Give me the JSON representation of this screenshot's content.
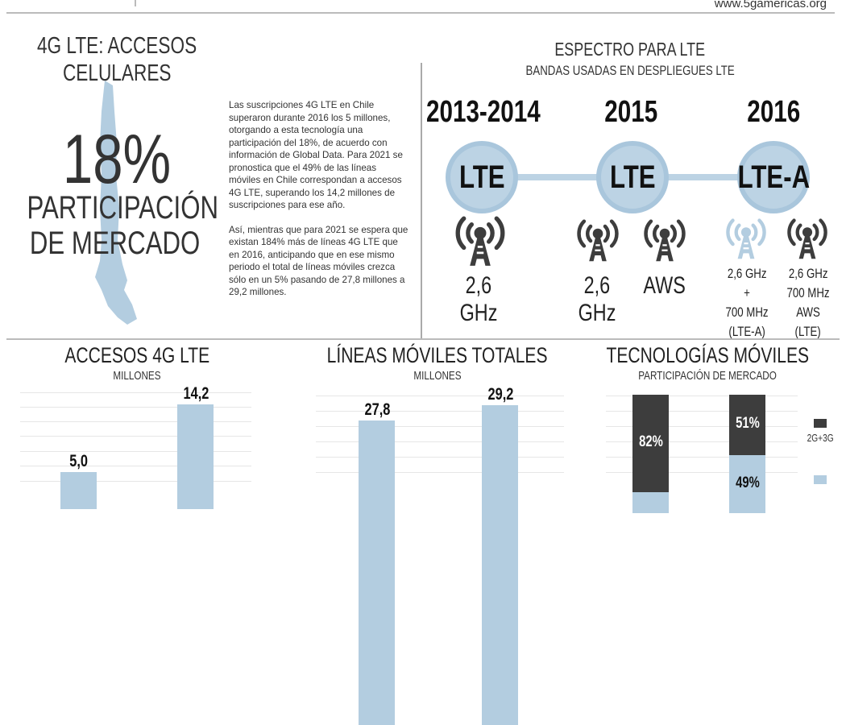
{
  "header": {
    "url": "www.5gamericas.org"
  },
  "left": {
    "title_line1": "4G LTE: ACCESOS",
    "title_line2": "CELULARES",
    "big_value": "18%",
    "caption_line1": "PARTICIPACIÓN",
    "caption_line2": "DE MERCADO",
    "paragraphs": [
      "Las suscripciones 4G LTE en Chile superaron durante 2016 los 5 millones, otorgando a esta tecnología una participación del 18%, de acuerdo con información de Global Data. Para 2021 se pronostica que el 49% de las líneas móviles en Chile correspondan a accesos 4G LTE, superando los 14,2 millones de suscripciones para ese año.",
      "Así, mientras que para 2021 se espera que existan 184% más de líneas 4G LTE que en 2016, anticipando que en ese mismo periodo el total de líneas móviles crezca sólo en un 5% pasando de 27,8 millones a 29,2 millones."
    ]
  },
  "spectrum": {
    "title": "ESPECTRO PARA LTE",
    "subtitle": "BANDAS USADAS EN DESPLIEGUES LTE",
    "periods": [
      {
        "year": "2013-2014",
        "tech": "LTE",
        "bands": [
          {
            "label1": "2,6",
            "label2": "GHz",
            "icon": "cell-tower-icon"
          }
        ]
      },
      {
        "year": "2015",
        "tech": "LTE",
        "bands": [
          {
            "label1": "2,6",
            "label2": "GHz",
            "icon": "cell-tower-icon"
          },
          {
            "label1": "AWS",
            "icon": "cell-tower-icon"
          }
        ]
      },
      {
        "year": "2016",
        "tech": "LTE-A",
        "bands": [
          {
            "lines": [
              "2,6 GHz",
              "+",
              "700 MHz",
              "(LTE-A)"
            ],
            "icon": "cell-tower-icon",
            "color": "#b3cde0"
          },
          {
            "lines": [
              "2,6 GHz",
              "700 MHz",
              "AWS",
              "(LTE)"
            ],
            "icon": "cell-tower-icon",
            "color": "#3d3d3d"
          }
        ]
      }
    ]
  },
  "colors": {
    "light_blue": "#b3cde0",
    "dark": "#3d3d3d"
  },
  "chart_data": [
    {
      "type": "bar",
      "title": "ACCESOS 4G LTE",
      "subtitle": "MILLONES",
      "values": [
        5.0,
        14.2
      ],
      "labels": [
        "5,0",
        "14,2"
      ],
      "grid": true
    },
    {
      "type": "bar",
      "title": "LÍNEAS MÓVILES TOTALES",
      "subtitle": "MILLONES",
      "values": [
        27.8,
        29.2
      ],
      "labels": [
        "27,8",
        "29,2"
      ],
      "grid": true
    },
    {
      "type": "bar",
      "stacked": true,
      "title": "TECNOLOGÍAS MÓVILES",
      "subtitle": "PARTICIPACIÓN DE MERCADO",
      "grid": true,
      "series": [
        {
          "name": "2G+3G",
          "values": [
            82,
            51
          ],
          "labels": [
            "82%",
            "51%"
          ],
          "color": "#3d3d3d"
        },
        {
          "values": [
            18,
            49
          ],
          "labels": [
            "",
            "49%"
          ],
          "color": "#b3cde0"
        }
      ],
      "legend": "right"
    }
  ]
}
